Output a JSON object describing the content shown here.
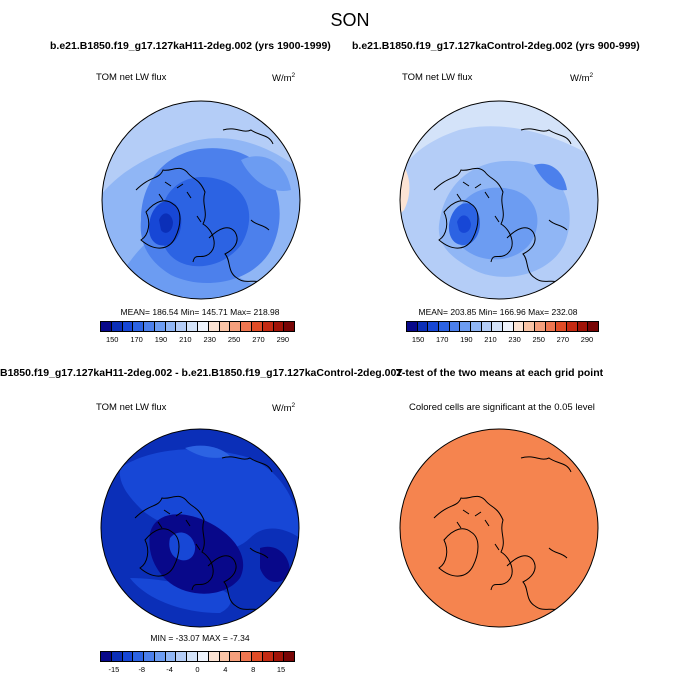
{
  "season": "SON",
  "title_top_left": "b.e21.B1850.f19_g17.127kaH11-2deg.002 (yrs 1900-1999)",
  "title_top_right": "b.e21.B1850.f19_g17.127kaControl-2deg.002 (yrs 900-999)",
  "title_bottom_left": "B1850.f19_g17.127kaH11-2deg.002 - b.e21.B1850.f19_g17.127kaControl-2deg.002",
  "title_bottom_right": "T-test of the two means at each grid point",
  "panels": {
    "p1": {
      "variable": "TOM net LW flux",
      "units": "W/m",
      "units_exp": "2",
      "stats": "MEAN= 186.54  Min= 145.71  Max= 218.98"
    },
    "p2": {
      "variable": "TOM net LW flux",
      "units": "W/m",
      "units_exp": "2",
      "stats": "MEAN= 203.85  Min= 166.96  Max= 232.08"
    },
    "p3": {
      "variable": "TOM net LW flux",
      "units": "W/m",
      "units_exp": "2",
      "stats": "MIN = -33.07 MAX =  -7.34"
    },
    "p4": {
      "caption": "Colored cells are significant at the 0.05 level"
    }
  },
  "colorbar_abs": {
    "colors": [
      "#08088a",
      "#0b2fb8",
      "#1747d6",
      "#2c63e3",
      "#4c80ec",
      "#6c9cf2",
      "#90b6f5",
      "#b4cdf7",
      "#d4e3f9",
      "#eef3fc",
      "#fbe3d4",
      "#f9c4a6",
      "#f59f7c",
      "#ef7650",
      "#e04c26",
      "#c42a12",
      "#a01307",
      "#780505"
    ],
    "ticks": [
      "150",
      "170",
      "190",
      "210",
      "230",
      "250",
      "270",
      "290"
    ]
  },
  "colorbar_diff": {
    "colors": [
      "#08088a",
      "#0b2fb8",
      "#1747d6",
      "#2c63e3",
      "#4c80ec",
      "#6c9cf2",
      "#90b6f5",
      "#b4cdf7",
      "#d4e3f9",
      "#eef3fc",
      "#fbe3d4",
      "#f9c4a6",
      "#f59f7c",
      "#ef7650",
      "#e04c26",
      "#c42a12",
      "#a01307",
      "#780505"
    ],
    "ticks": [
      "-15",
      "-8",
      "-4",
      "0",
      "4",
      "8",
      "15"
    ]
  },
  "ttest_color": "#f5844f"
}
